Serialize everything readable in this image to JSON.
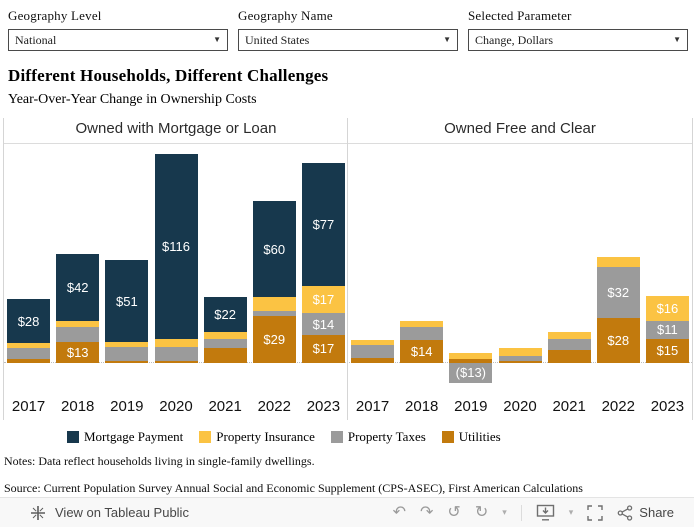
{
  "filters": [
    {
      "label": "Geography Level",
      "value": "National"
    },
    {
      "label": "Geography Name",
      "value": "United States"
    },
    {
      "label": "Selected Parameter",
      "value": "Change, Dollars"
    }
  ],
  "header": {
    "title": "Different Households, Different Challenges",
    "subtitle": "Year-Over-Year Change in Ownership Costs"
  },
  "series_colors": {
    "Mortgage Payment": "#17384D",
    "Property Insurance": "#FBC343",
    "Property Taxes": "#9B9B9B",
    "Utilities": "#C27A0D"
  },
  "legend": [
    "Mortgage Payment",
    "Property Insurance",
    "Property Taxes",
    "Utilities"
  ],
  "chart_data": {
    "type": "bar",
    "subtype": "stacked",
    "categories": [
      "2017",
      "2018",
      "2019",
      "2020",
      "2021",
      "2022",
      "2023"
    ],
    "ylim": [
      -21,
      137
    ],
    "grid": "zero-line-dotted",
    "stack_order_bottom_to_top": [
      "Utilities",
      "Property Taxes",
      "Property Insurance",
      "Mortgage Payment"
    ],
    "panels": [
      {
        "title": "Owned with Mortgage or Loan",
        "series": [
          {
            "name": "Mortgage Payment",
            "values": [
              28,
              42,
              51,
              116,
              22,
              60,
              77
            ],
            "labels": [
              "$28",
              "$42",
              "$51",
              "$116",
              "$22",
              "$60",
              "$77"
            ]
          },
          {
            "name": "Property Insurance",
            "values": [
              3,
              4,
              3,
              5,
              4,
              9,
              17
            ],
            "labels": [
              null,
              null,
              null,
              null,
              null,
              null,
              "$17"
            ]
          },
          {
            "name": "Property Taxes",
            "values": [
              7,
              9,
              9,
              9,
              6,
              3,
              14
            ],
            "labels": [
              null,
              null,
              null,
              null,
              null,
              null,
              "$14"
            ]
          },
          {
            "name": "Utilities",
            "values": [
              2,
              13,
              1,
              1,
              9,
              29,
              17
            ],
            "labels": [
              null,
              "$13",
              null,
              null,
              null,
              "$29",
              "$17"
            ]
          }
        ]
      },
      {
        "title": "Owned Free and Clear",
        "series": [
          {
            "name": "Mortgage Payment",
            "values": [
              0,
              0,
              0,
              0,
              0,
              0,
              0
            ],
            "labels": [
              null,
              null,
              null,
              null,
              null,
              null,
              null
            ]
          },
          {
            "name": "Property Insurance",
            "values": [
              3,
              4,
              4,
              5,
              4,
              6,
              16
            ],
            "labels": [
              null,
              null,
              null,
              null,
              null,
              null,
              "$16"
            ]
          },
          {
            "name": "Property Taxes",
            "values": [
              8,
              8,
              -13,
              3,
              7,
              32,
              11
            ],
            "labels": [
              null,
              null,
              "($13)",
              null,
              null,
              "$32",
              "$11"
            ]
          },
          {
            "name": "Utilities",
            "values": [
              3,
              14,
              2,
              1,
              8,
              28,
              15
            ],
            "labels": [
              null,
              "$14",
              null,
              null,
              null,
              "$28",
              "$15"
            ]
          }
        ]
      }
    ]
  },
  "notes": "Notes: Data reflect households living in single-family dwellings.",
  "source": "Source: Current Population Survey Annual Social and Economic Supplement (CPS-ASEC), First American Calculations",
  "toolbar": {
    "view_label": "View on Tableau Public",
    "share_label": "Share"
  }
}
